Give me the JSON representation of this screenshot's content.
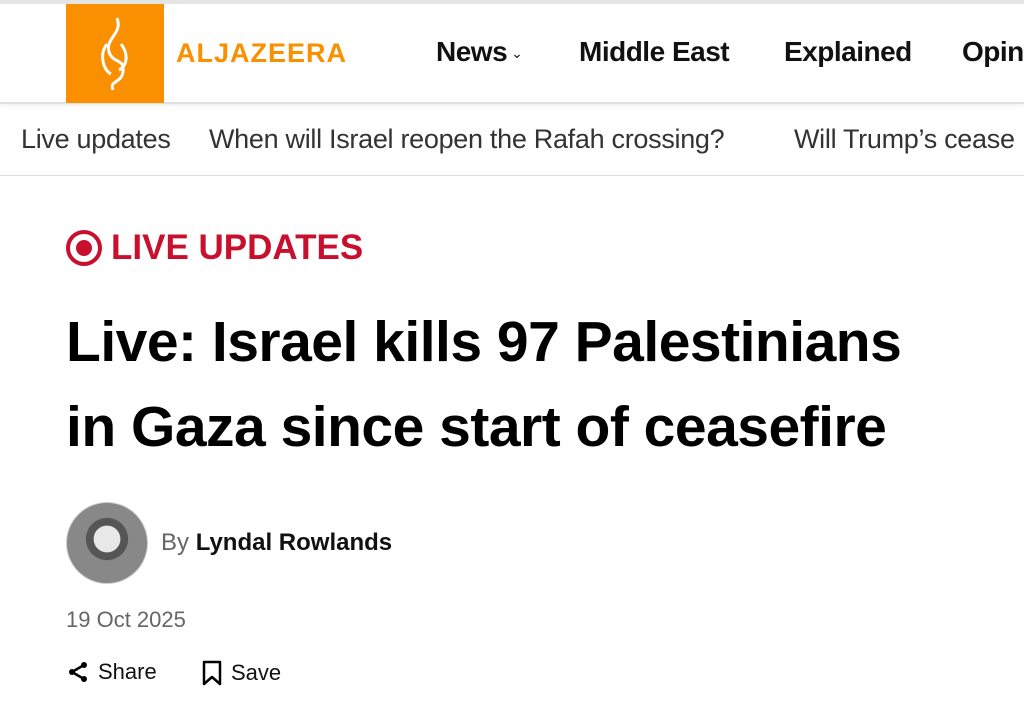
{
  "header": {
    "brand": "ALJAZEERA",
    "brand_color": "#fa9000",
    "nav": [
      "News",
      "Middle East",
      "Explained",
      "Opin"
    ]
  },
  "subnav": [
    "Live updates",
    "When will Israel reopen the Rafah crossing?",
    "Will Trump’s cease"
  ],
  "article": {
    "tag": "LIVE UPDATES",
    "tag_color": "#c8102e",
    "title_lines": [
      "Live: Israel kills 97 Palestinians",
      "in Gaza since start of ceasefire"
    ],
    "by": "By",
    "author": "Lyndal Rowlands",
    "date": "19 Oct 2025",
    "share": "Share",
    "save": "Save"
  }
}
